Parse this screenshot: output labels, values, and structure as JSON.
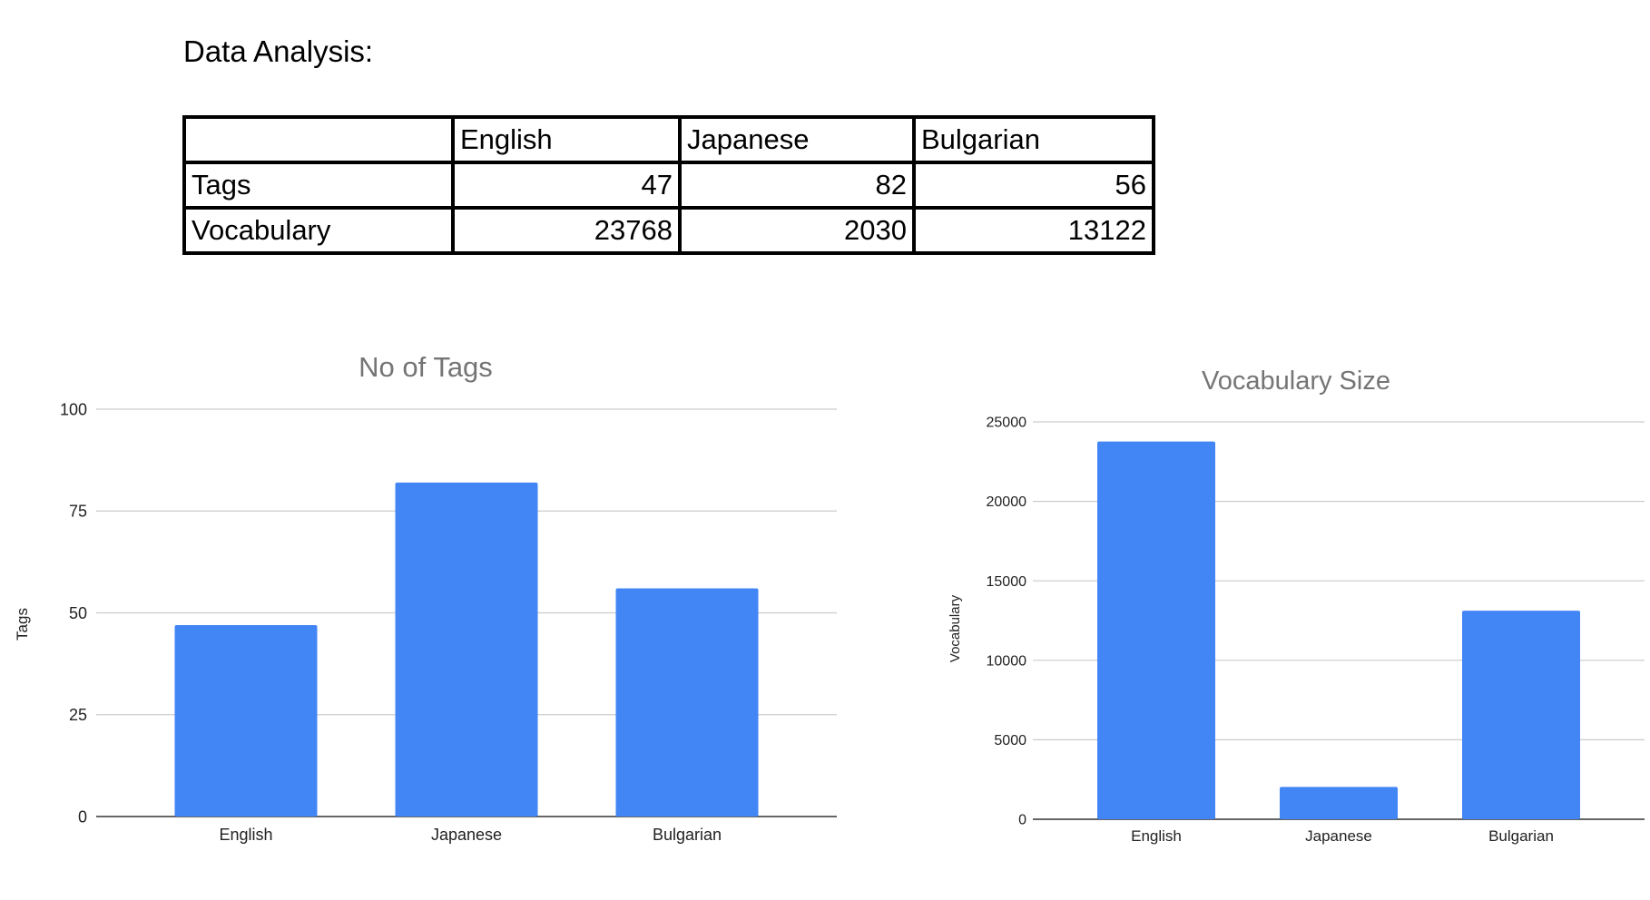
{
  "heading": "Data Analysis:",
  "table": {
    "headers": [
      "",
      "English",
      "Japanese",
      "Bulgarian"
    ],
    "rows": [
      {
        "label": "Tags",
        "values": [
          "47",
          "82",
          "56"
        ]
      },
      {
        "label": "Vocabulary",
        "values": [
          "23768",
          "2030",
          "13122"
        ]
      }
    ]
  },
  "colors": {
    "bar": "#4285f4",
    "title": "#757575",
    "grid": "#cccccc",
    "axis": "#333333"
  },
  "chart_data": [
    {
      "type": "bar",
      "title": "No of Tags",
      "xlabel": "",
      "ylabel": "Tags",
      "categories": [
        "English",
        "Japanese",
        "Bulgarian"
      ],
      "values": [
        47,
        82,
        56
      ],
      "ylim": [
        0,
        100
      ],
      "yticks": [
        0,
        25,
        50,
        75,
        100
      ],
      "grid": true
    },
    {
      "type": "bar",
      "title": "Vocabulary Size",
      "xlabel": "",
      "ylabel": "Vocabulary",
      "categories": [
        "English",
        "Japanese",
        "Bulgarian"
      ],
      "values": [
        23768,
        2030,
        13122
      ],
      "ylim": [
        0,
        25000
      ],
      "yticks": [
        0,
        5000,
        10000,
        15000,
        20000,
        25000
      ],
      "grid": true
    }
  ]
}
